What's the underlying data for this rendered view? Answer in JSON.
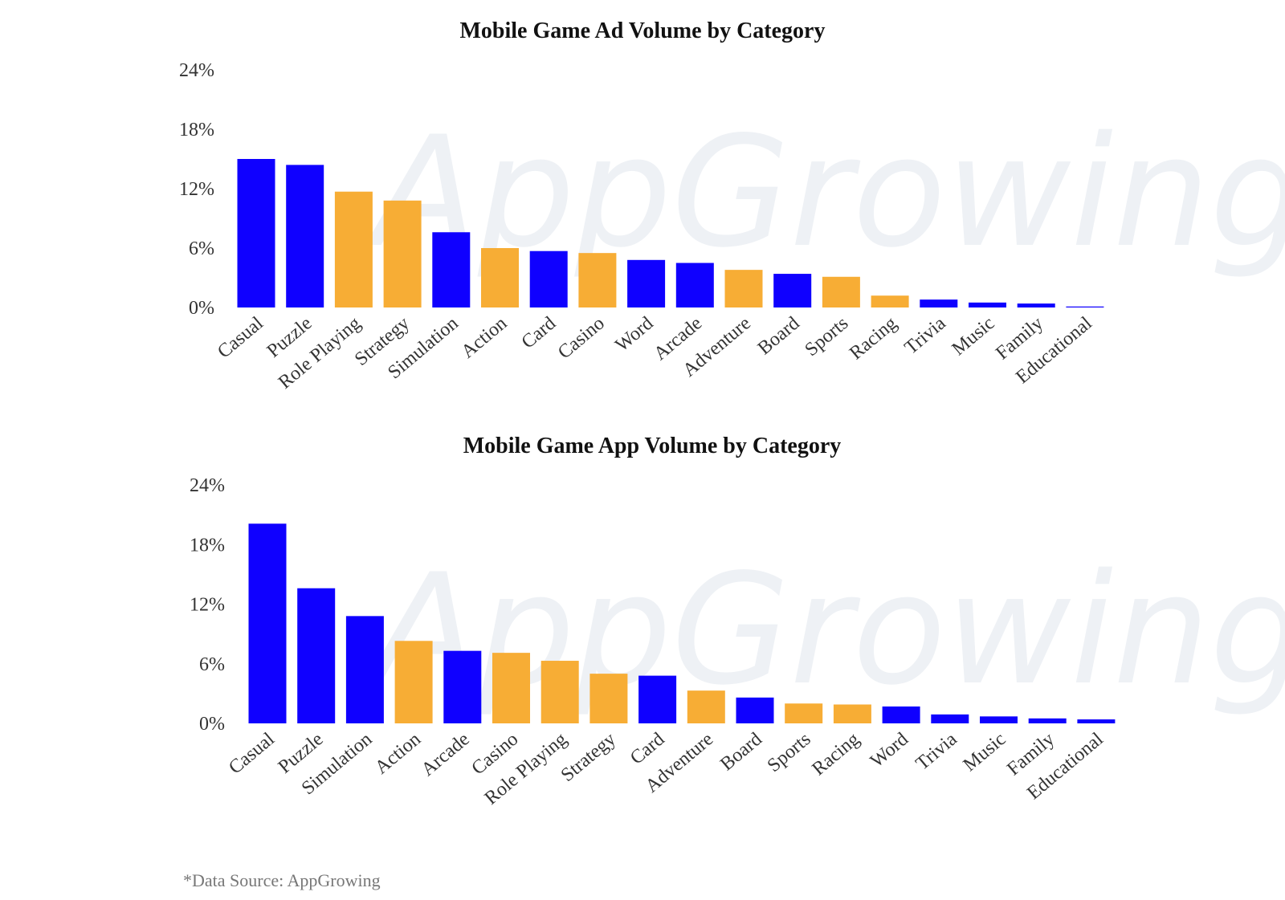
{
  "colors": {
    "primary": "#0f00ff",
    "secondary": "#f7ad35"
  },
  "watermark": "AppGrowing",
  "source": "*Data Source: AppGrowing",
  "chart_data": [
    {
      "type": "bar",
      "title": "Mobile Game Ad Volume by Category",
      "categories": [
        "Casual",
        "Puzzle",
        "Role Playing",
        "Strategy",
        "Simulation",
        "Action",
        "Card",
        "Casino",
        "Word",
        "Arcade",
        "Adventure",
        "Board",
        "Sports",
        "Racing",
        "Trivia",
        "Music",
        "Family",
        "Educational"
      ],
      "values": [
        15.0,
        14.4,
        11.7,
        10.8,
        7.6,
        6.0,
        5.7,
        5.5,
        4.8,
        4.5,
        3.8,
        3.4,
        3.1,
        1.2,
        0.8,
        0.5,
        0.4,
        0.1
      ],
      "bar_colors": [
        "#0f00ff",
        "#0f00ff",
        "#f7ad35",
        "#f7ad35",
        "#0f00ff",
        "#f7ad35",
        "#0f00ff",
        "#f7ad35",
        "#0f00ff",
        "#0f00ff",
        "#f7ad35",
        "#0f00ff",
        "#f7ad35",
        "#f7ad35",
        "#0f00ff",
        "#0f00ff",
        "#0f00ff",
        "#0f00ff"
      ],
      "ylim": [
        0,
        24
      ],
      "yticks": [
        0,
        6,
        12,
        18,
        24
      ],
      "ytick_labels": [
        "0%",
        "6%",
        "12%",
        "18%",
        "24%"
      ],
      "grid": false
    },
    {
      "type": "bar",
      "title": "Mobile Game App Volume by Category",
      "categories": [
        "Casual",
        "Puzzle",
        "Simulation",
        "Action",
        "Arcade",
        "Casino",
        "Role Playing",
        "Strategy",
        "Card",
        "Adventure",
        "Board",
        "Sports",
        "Racing",
        "Word",
        "Trivia",
        "Music",
        "Family",
        "Educational"
      ],
      "values": [
        20.1,
        13.6,
        10.8,
        8.3,
        7.3,
        7.1,
        6.3,
        5.0,
        4.8,
        3.3,
        2.6,
        2.0,
        1.9,
        1.7,
        0.9,
        0.7,
        0.5,
        0.4
      ],
      "bar_colors": [
        "#0f00ff",
        "#0f00ff",
        "#0f00ff",
        "#f7ad35",
        "#0f00ff",
        "#f7ad35",
        "#f7ad35",
        "#f7ad35",
        "#0f00ff",
        "#f7ad35",
        "#0f00ff",
        "#f7ad35",
        "#f7ad35",
        "#0f00ff",
        "#0f00ff",
        "#0f00ff",
        "#0f00ff",
        "#0f00ff"
      ],
      "ylim": [
        0,
        24
      ],
      "yticks": [
        0,
        6,
        12,
        18,
        24
      ],
      "ytick_labels": [
        "0%",
        "6%",
        "12%",
        "18%",
        "24%"
      ],
      "grid": false
    }
  ]
}
